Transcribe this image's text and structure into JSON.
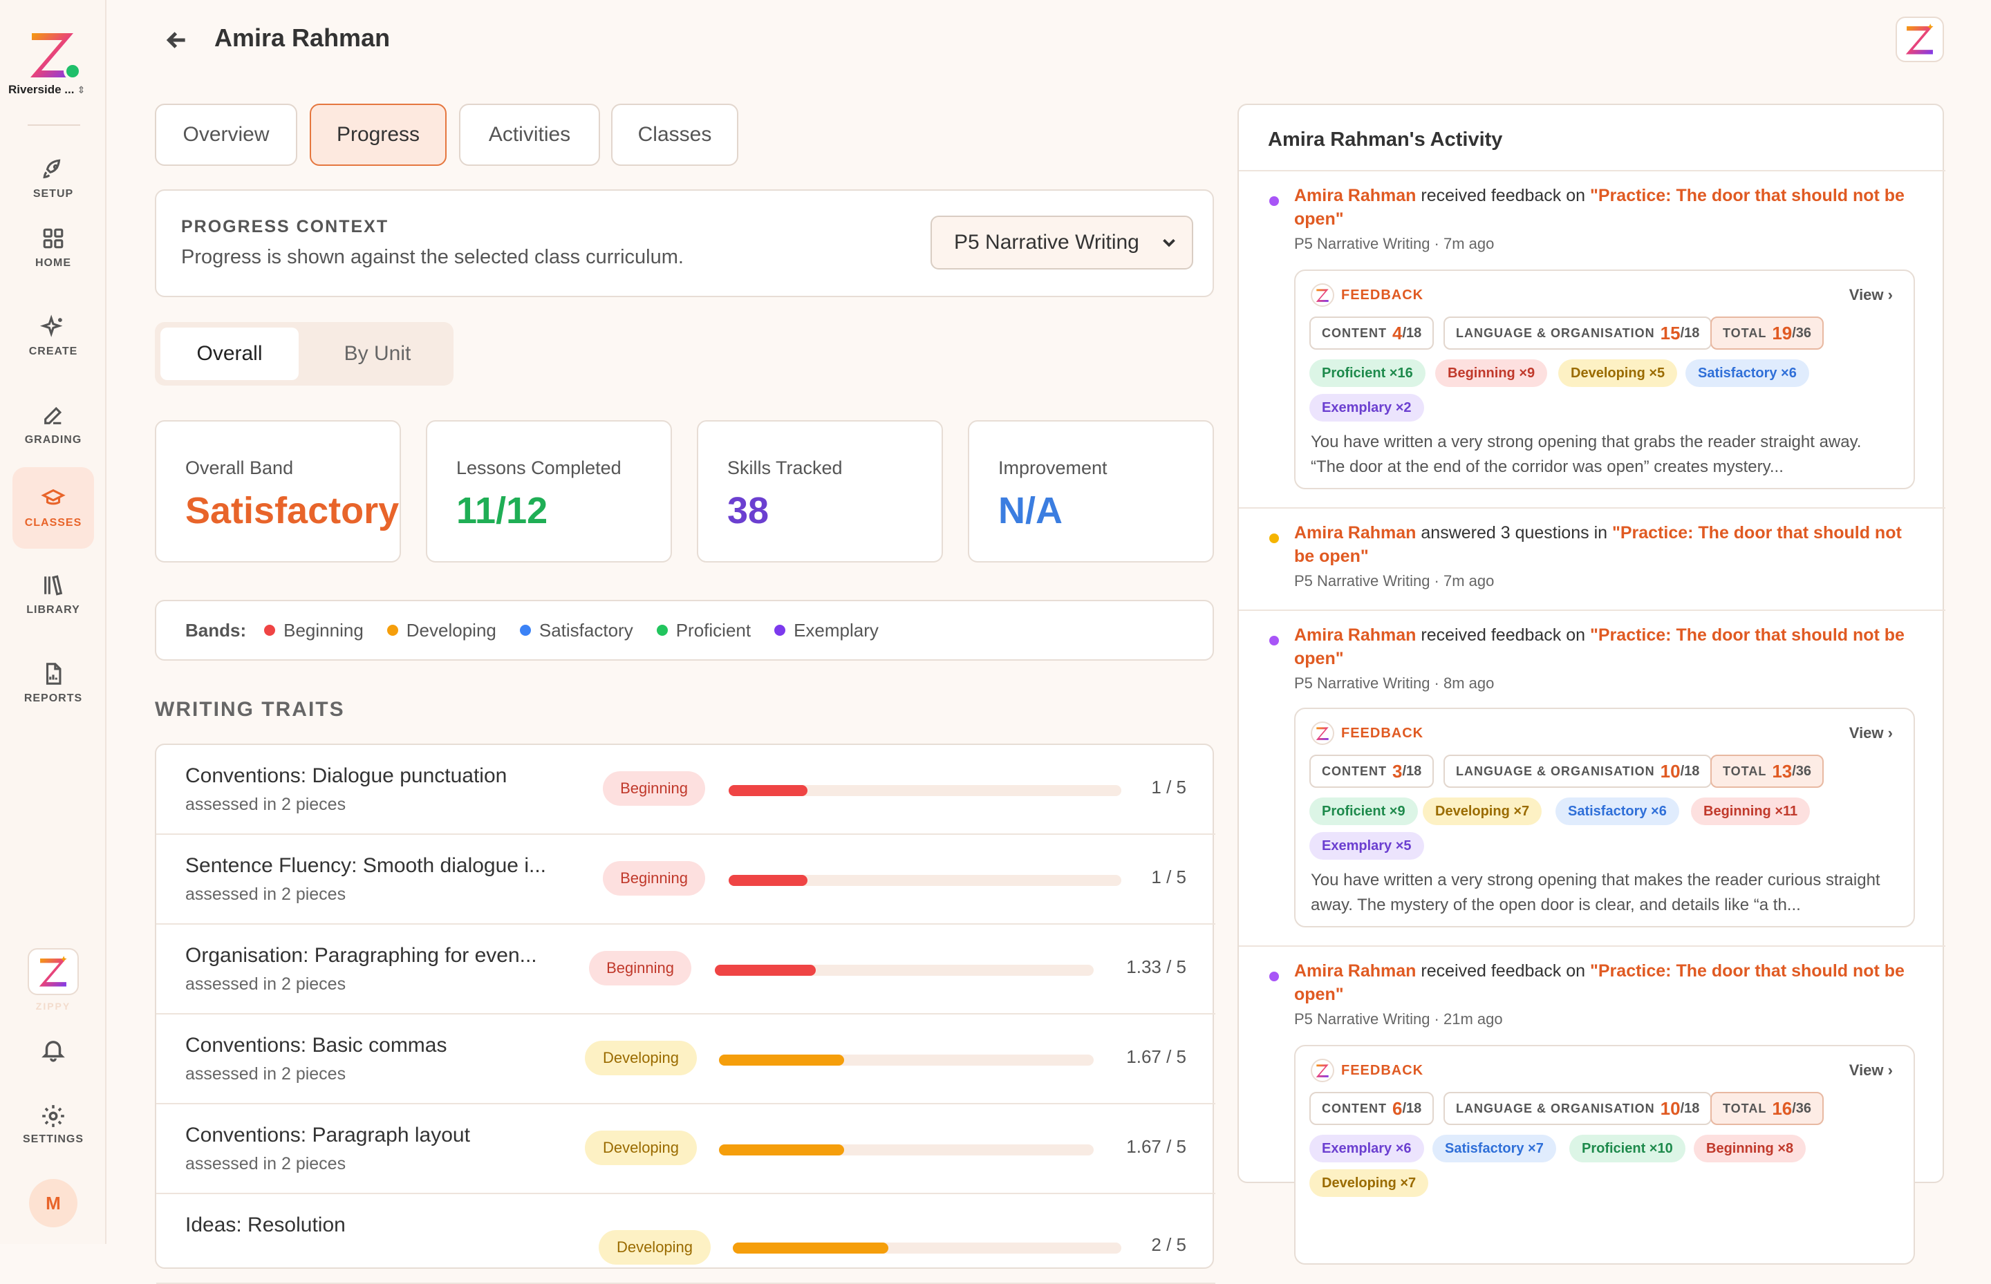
{
  "app": {
    "school": "Riverside ...",
    "zippy_label": "ZIPPY",
    "avatar_initial": "M"
  },
  "nav": {
    "setup": "SETUP",
    "home": "HOME",
    "create": "CREATE",
    "grading": "GRADING",
    "classes": "CLASSES",
    "library": "LIBRARY",
    "reports": "REPORTS",
    "settings": "SETTINGS"
  },
  "header": {
    "title": "Amira Rahman"
  },
  "tabs": {
    "overview": "Overview",
    "progress": "Progress",
    "activities": "Activities",
    "classes": "Classes"
  },
  "context": {
    "title": "PROGRESS CONTEXT",
    "subtitle": "Progress is shown against the selected class curriculum.",
    "selected": "P5 Narrative Writing"
  },
  "segment": {
    "overall": "Overall",
    "by_unit": "By Unit"
  },
  "stats": {
    "band_label": "Overall Band",
    "band_value": "Satisfactory",
    "lessons_label": "Lessons Completed",
    "lessons_value": "11/12",
    "skills_label": "Skills Tracked",
    "skills_value": "38",
    "improvement_label": "Improvement",
    "improvement_value": "N/A"
  },
  "bands": {
    "lead": "Bands:",
    "beginning": "Beginning",
    "developing": "Developing",
    "satisfactory": "Satisfactory",
    "proficient": "Proficient",
    "exemplary": "Exemplary",
    "colors": {
      "beginning": "#ef4444",
      "developing": "#f59e0b",
      "satisfactory": "#3b82f6",
      "proficient": "#22c55e",
      "exemplary": "#7c3aed"
    }
  },
  "traits_title": "WRITING TRAITS",
  "traits": [
    {
      "name": "Conventions: Dialogue punctuation",
      "sub": "assessed in 2 pieces",
      "band": "Beginning",
      "score": "1 / 5",
      "fraction": 0.2
    },
    {
      "name": "Sentence Fluency: Smooth dialogue i...",
      "sub": "assessed in 2 pieces",
      "band": "Beginning",
      "score": "1 / 5",
      "fraction": 0.2
    },
    {
      "name": "Organisation: Paragraphing for even...",
      "sub": "assessed in 2 pieces",
      "band": "Beginning",
      "score": "1.33 / 5",
      "fraction": 0.266
    },
    {
      "name": "Conventions: Basic commas",
      "sub": "assessed in 2 pieces",
      "band": "Developing",
      "score": "1.67 / 5",
      "fraction": 0.334
    },
    {
      "name": "Conventions: Paragraph layout",
      "sub": "assessed in 2 pieces",
      "band": "Developing",
      "score": "1.67 / 5",
      "fraction": 0.334
    },
    {
      "name": "Ideas: Resolution",
      "sub": "",
      "band": "Developing",
      "score": "2 / 5",
      "fraction": 0.4
    }
  ],
  "activity": {
    "title": "Amira Rahman's Activity",
    "items": [
      {
        "who": "Amira Rahman",
        "verb": "received feedback on",
        "what": "\"Practice: The door that should not be open\"",
        "meta": "P5 Narrative Writing · 7m ago",
        "dot": "#a855f7",
        "feedback": {
          "label": "FEEDBACK",
          "view": "View",
          "content": {
            "label": "CONTENT",
            "n": "4",
            "d": "/18"
          },
          "lang": {
            "label": "LANGUAGE & ORGANISATION",
            "n": "15",
            "d": "/18"
          },
          "total": {
            "label": "TOTAL",
            "n": "19",
            "d": "/36"
          },
          "chips": [
            {
              "band": "Proficient",
              "text": "Proficient ×16"
            },
            {
              "band": "Beginning",
              "text": "Beginning ×9"
            },
            {
              "band": "Developing",
              "text": "Developing ×5"
            },
            {
              "band": "Satisfactory",
              "text": "Satisfactory ×6"
            },
            {
              "band": "Exemplary",
              "text": "Exemplary ×2"
            }
          ],
          "text": "You have written a very strong opening that grabs the reader straight away. “The door at the end of the corridor was open” creates mystery..."
        }
      },
      {
        "who": "Amira Rahman",
        "verb": "answered 3 questions in",
        "what": "\"Practice: The door that should not be open\"",
        "meta": "P5 Narrative Writing · 7m ago",
        "dot": "#f5b400"
      },
      {
        "who": "Amira Rahman",
        "verb": "received feedback on",
        "what": "\"Practice: The door that should not be open\"",
        "meta": "P5 Narrative Writing · 8m ago",
        "dot": "#a855f7",
        "feedback": {
          "label": "FEEDBACK",
          "view": "View",
          "content": {
            "label": "CONTENT",
            "n": "3",
            "d": "/18"
          },
          "lang": {
            "label": "LANGUAGE & ORGANISATION",
            "n": "10",
            "d": "/18"
          },
          "total": {
            "label": "TOTAL",
            "n": "13",
            "d": "/36"
          },
          "chips": [
            {
              "band": "Proficient",
              "text": "Proficient ×9"
            },
            {
              "band": "Developing",
              "text": "Developing ×7"
            },
            {
              "band": "Satisfactory",
              "text": "Satisfactory ×6"
            },
            {
              "band": "Beginning",
              "text": "Beginning ×11"
            },
            {
              "band": "Exemplary",
              "text": "Exemplary ×5"
            }
          ],
          "text": "You have written a very strong opening that makes the reader curious straight away. The mystery of the open door is clear, and details like “a th..."
        }
      },
      {
        "who": "Amira Rahman",
        "verb": "received feedback on",
        "what": "\"Practice: The door that should not be open\"",
        "meta": "P5 Narrative Writing · 21m ago",
        "dot": "#a855f7",
        "feedback": {
          "label": "FEEDBACK",
          "view": "View",
          "content": {
            "label": "CONTENT",
            "n": "6",
            "d": "/18"
          },
          "lang": {
            "label": "LANGUAGE & ORGANISATION",
            "n": "10",
            "d": "/18"
          },
          "total": {
            "label": "TOTAL",
            "n": "16",
            "d": "/36"
          },
          "chips": [
            {
              "band": "Exemplary",
              "text": "Exemplary ×6"
            },
            {
              "band": "Satisfactory",
              "text": "Satisfactory ×7"
            },
            {
              "band": "Proficient",
              "text": "Proficient ×10"
            },
            {
              "band": "Beginning",
              "text": "Beginning ×8"
            },
            {
              "band": "Developing",
              "text": "Developing ×7"
            }
          ],
          "text": ""
        }
      }
    ]
  }
}
